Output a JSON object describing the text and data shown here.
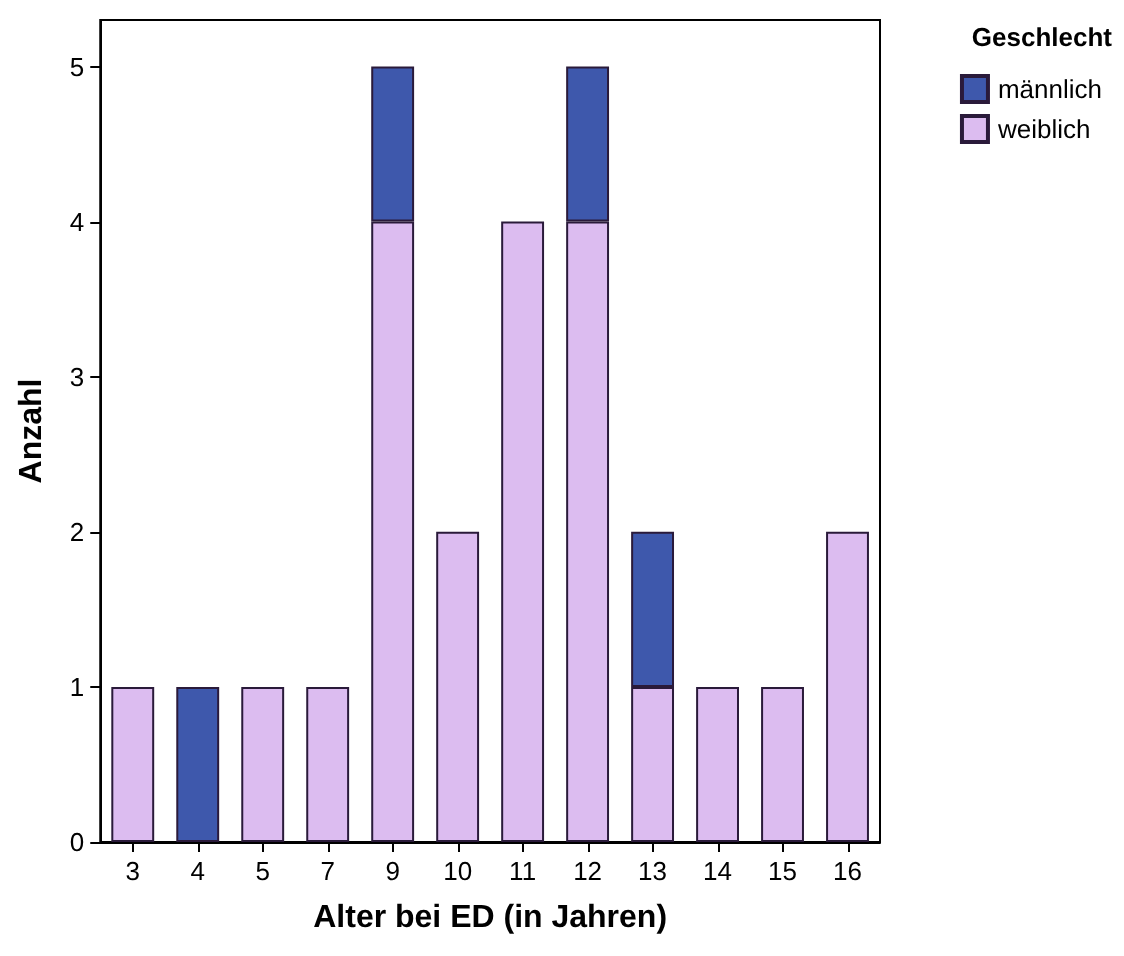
{
  "chart_data": {
    "type": "bar",
    "xlabel": "Alter bei ED (in Jahren)",
    "ylabel": "Anzahl",
    "legend_title": "Geschlecht",
    "categories": [
      "3",
      "4",
      "5",
      "7",
      "9",
      "10",
      "11",
      "12",
      "13",
      "14",
      "15",
      "16"
    ],
    "stacked": true,
    "series": [
      {
        "name": "weiblich",
        "color": "#dcbcf0",
        "values": [
          1,
          0,
          1,
          1,
          4,
          2,
          4,
          4,
          1,
          1,
          1,
          2
        ]
      },
      {
        "name": "männlich",
        "color": "#3e58ac",
        "values": [
          0,
          1,
          0,
          0,
          1,
          0,
          0,
          1,
          1,
          0,
          0,
          0
        ]
      }
    ],
    "ylim": [
      0,
      5.3
    ],
    "yticks": [
      0,
      1,
      2,
      3,
      4,
      5
    ],
    "grid": false,
    "legend": "top right"
  }
}
